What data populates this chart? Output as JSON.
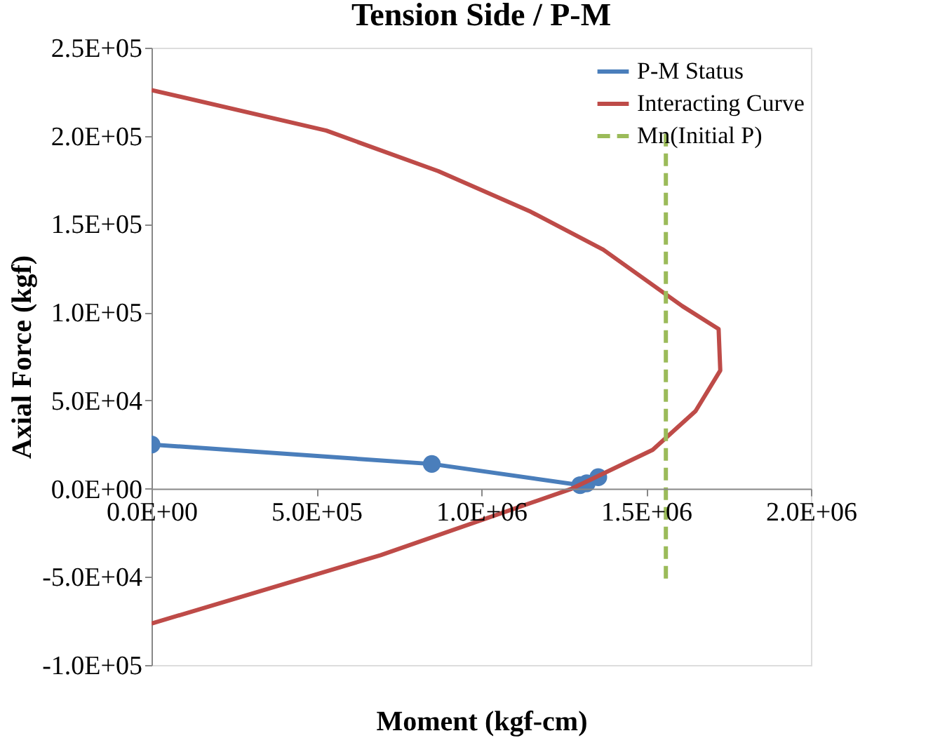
{
  "chart_data": {
    "type": "line",
    "title": "Tension Side / P-M",
    "xlabel": "Moment (kgf-cm)",
    "ylabel": "Axial Force (kgf)",
    "xlim": [
      0,
      2000000
    ],
    "ylim": [
      -100000,
      250000
    ],
    "xticks": [
      {
        "value": 0,
        "label": "0.0E+00"
      },
      {
        "value": 500000,
        "label": "5.0E+05"
      },
      {
        "value": 1000000,
        "label": "1.0E+06"
      },
      {
        "value": 1500000,
        "label": "1.5E+06"
      },
      {
        "value": 2000000,
        "label": "2.0E+06"
      }
    ],
    "yticks": [
      {
        "value": -100000,
        "label": "-1.0E+05"
      },
      {
        "value": -50000,
        "label": "-5.0E+04"
      },
      {
        "value": 0,
        "label": "0.0E+00"
      },
      {
        "value": 50000,
        "label": "5.0E+04"
      },
      {
        "value": 100000,
        "label": "1.0E+05"
      },
      {
        "value": 150000,
        "label": "1.5E+05"
      },
      {
        "value": 200000,
        "label": "2.0E+05"
      },
      {
        "value": 250000,
        "label": "2.5E+05"
      }
    ],
    "grid": false,
    "legend": "top right",
    "series": [
      {
        "name": "P-M Status",
        "color": "#4a7ebb",
        "marker": "circle",
        "line_style": "solid",
        "x": [
          0,
          850000,
          1300000,
          1320000,
          1355000
        ],
        "values": [
          25000,
          14000,
          2000,
          3000,
          6500
        ]
      },
      {
        "name": "Interacting Curve",
        "color": "#be4b48",
        "marker": "none",
        "line_style": "solid",
        "x": [
          0,
          530000,
          870000,
          1150000,
          1370000,
          1610000,
          1720000,
          1725000,
          1650000,
          1520000,
          1275000,
          695000,
          0
        ],
        "values": [
          226000,
          203000,
          180000,
          157000,
          135500,
          103500,
          90500,
          67000,
          44000,
          22000,
          0,
          -37700,
          -76500
        ]
      },
      {
        "name": "Mn(Initial P)",
        "color": "#9bbb59",
        "marker": "none",
        "line_style": "dashed",
        "x": [
          1560000,
          1560000
        ],
        "values": [
          -51000,
          203000
        ]
      }
    ]
  }
}
